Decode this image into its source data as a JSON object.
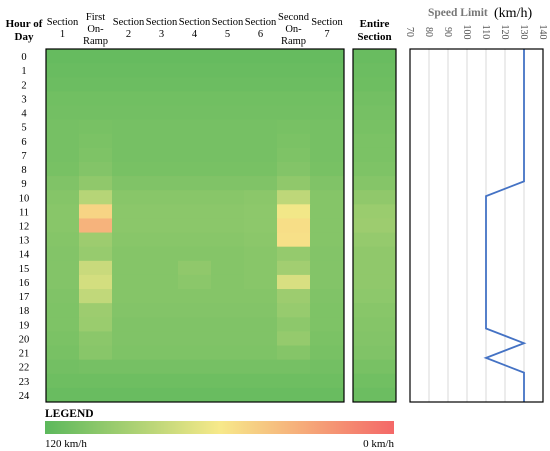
{
  "chart_data": [
    {
      "type": "heatmap",
      "row_header": "Hour of Day",
      "hours": [
        "0",
        "1",
        "2",
        "3",
        "4",
        "5",
        "6",
        "7",
        "8",
        "9",
        "10",
        "11",
        "12",
        "13",
        "14",
        "15",
        "16",
        "17",
        "18",
        "19",
        "20",
        "21",
        "22",
        "23",
        "24"
      ],
      "columns": [
        {
          "label": "Section 1"
        },
        {
          "label": "First On-Ramp"
        },
        {
          "label": "Section 2"
        },
        {
          "label": "Section 3"
        },
        {
          "label": "Section 4"
        },
        {
          "label": "Section 5"
        },
        {
          "label": "Section 6"
        },
        {
          "label": "Second On-Ramp"
        },
        {
          "label": "Section 7"
        }
      ],
      "speed_kmh": [
        [
          116,
          116,
          116,
          116,
          116,
          116,
          116,
          116,
          116
        ],
        [
          115,
          115,
          115,
          115,
          115,
          115,
          115,
          115,
          115
        ],
        [
          114,
          114,
          114,
          114,
          114,
          114,
          114,
          114,
          114
        ],
        [
          112,
          112,
          112,
          112,
          112,
          112,
          112,
          112,
          112
        ],
        [
          111,
          111,
          111,
          111,
          111,
          111,
          111,
          111,
          111
        ],
        [
          110,
          109,
          110,
          110,
          110,
          110,
          110,
          109,
          110
        ],
        [
          110,
          108,
          110,
          110,
          110,
          110,
          110,
          108,
          110
        ],
        [
          110,
          107,
          110,
          110,
          110,
          110,
          110,
          107,
          110
        ],
        [
          109,
          105,
          109,
          109,
          109,
          109,
          109,
          105,
          109
        ],
        [
          106,
          100,
          106,
          106,
          106,
          106,
          106,
          100,
          106
        ],
        [
          104,
          85,
          103,
          103,
          103,
          103,
          102,
          82,
          104
        ],
        [
          103,
          50,
          102,
          102,
          102,
          102,
          101,
          62,
          104
        ],
        [
          103,
          35,
          102,
          102,
          102,
          102,
          101,
          55,
          104
        ],
        [
          104,
          95,
          103,
          103,
          103,
          103,
          102,
          56,
          104
        ],
        [
          105,
          97,
          104,
          104,
          104,
          104,
          103,
          98,
          105
        ],
        [
          105,
          78,
          104,
          104,
          100,
          104,
          103,
          93,
          105
        ],
        [
          105,
          74,
          104,
          104,
          102,
          104,
          103,
          72,
          105
        ],
        [
          106,
          81,
          104,
          104,
          104,
          104,
          104,
          95,
          106
        ],
        [
          107,
          95,
          105,
          105,
          105,
          105,
          105,
          97,
          107
        ],
        [
          107,
          96,
          106,
          106,
          106,
          106,
          106,
          101,
          107
        ],
        [
          108,
          102,
          106,
          106,
          106,
          106,
          106,
          98,
          108
        ],
        [
          109,
          103,
          107,
          107,
          107,
          107,
          107,
          104,
          109
        ],
        [
          111,
          110,
          110,
          110,
          110,
          110,
          110,
          110,
          111
        ],
        [
          113,
          113,
          113,
          113,
          113,
          113,
          113,
          113,
          113
        ],
        [
          115,
          115,
          115,
          115,
          115,
          115,
          115,
          115,
          115
        ]
      ],
      "entire_section": {
        "label": "Entire Section",
        "speed_kmh": [
          115,
          114,
          113,
          111,
          110,
          109,
          108,
          108,
          107,
          104,
          100,
          96,
          95,
          98,
          100,
          100,
          100,
          101,
          103,
          104,
          105,
          106,
          109,
          112,
          114
        ]
      }
    },
    {
      "type": "line",
      "title": "Speed Limit",
      "unit": "(km/h)",
      "x_ticks": [
        70,
        80,
        90,
        100,
        110,
        120,
        130,
        140
      ],
      "xlim": [
        70,
        140
      ],
      "grid": true,
      "speed_limit_kmh": [
        130,
        130,
        130,
        130,
        130,
        130,
        130,
        130,
        130,
        130,
        110,
        110,
        110,
        110,
        110,
        110,
        110,
        110,
        110,
        110,
        130,
        110,
        130,
        130,
        130
      ]
    }
  ],
  "legend": {
    "title": "LEGEND",
    "min_label": "120 km/h",
    "max_label": "0 km/h",
    "range_kmh": [
      120,
      0
    ]
  },
  "colors": {
    "fast": "#5cb85c",
    "mid": "#f7e98a",
    "slow": "#f46868",
    "line": "#4472c4",
    "border": "#000000",
    "grid": "#d0d0d0"
  }
}
